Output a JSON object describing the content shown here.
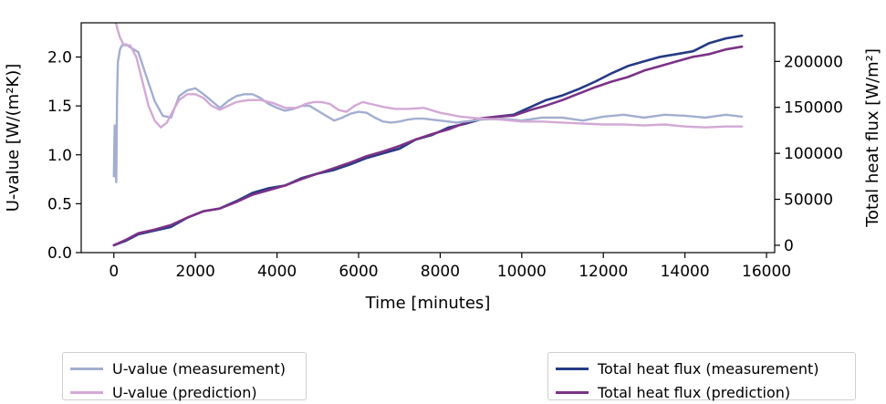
{
  "chart_data": {
    "type": "line",
    "xlabel": "Time [minutes]",
    "ylabel_left": "U-value [W/(m²K)]",
    "ylabel_right": "Total heat flux [W/m²]",
    "xlim": [
      -800,
      16200
    ],
    "ylim_left": [
      0.0,
      2.35
    ],
    "ylim_right": [
      -8000,
      242000
    ],
    "x_ticks": [
      "0",
      "2000",
      "4000",
      "6000",
      "8000",
      "10000",
      "12000",
      "14000",
      "16000"
    ],
    "y_left_ticks": [
      "0.0",
      "0.5",
      "1.0",
      "1.5",
      "2.0"
    ],
    "y_right_ticks": [
      "0",
      "50000",
      "100000",
      "150000",
      "200000"
    ],
    "legend_left": "bottom-left",
    "legend_right": "bottom-right",
    "colors": {
      "u_measurement": "#a3aed0",
      "u_prediction": "#d3a9d5",
      "flux_measurement": "#253a85",
      "flux_prediction": "#7b3287"
    },
    "series": [
      {
        "name": "U-value (measurement)",
        "axis": "left",
        "x": [
          0,
          20,
          40,
          60,
          80,
          100,
          150,
          200,
          300,
          400,
          600,
          800,
          1000,
          1200,
          1400,
          1600,
          1800,
          2000,
          2200,
          2400,
          2600,
          2800,
          3000,
          3200,
          3400,
          3600,
          3800,
          4000,
          4200,
          4400,
          4600,
          4800,
          5000,
          5200,
          5400,
          5600,
          5800,
          6000,
          6200,
          6400,
          6600,
          6800,
          7000,
          7200,
          7400,
          7600,
          7800,
          8000,
          8200,
          8400,
          8600,
          8800,
          9000,
          9500,
          10000,
          10500,
          11000,
          11500,
          12000,
          12500,
          13000,
          13500,
          14000,
          14500,
          15000,
          15400
        ],
        "y": [
          0.78,
          1.3,
          0.9,
          0.72,
          1.6,
          1.95,
          2.08,
          2.12,
          2.13,
          2.1,
          2.05,
          1.8,
          1.55,
          1.4,
          1.38,
          1.6,
          1.66,
          1.68,
          1.62,
          1.55,
          1.48,
          1.55,
          1.6,
          1.62,
          1.62,
          1.58,
          1.52,
          1.48,
          1.45,
          1.47,
          1.5,
          1.5,
          1.45,
          1.4,
          1.35,
          1.38,
          1.42,
          1.44,
          1.43,
          1.38,
          1.34,
          1.33,
          1.34,
          1.36,
          1.37,
          1.37,
          1.36,
          1.35,
          1.34,
          1.33,
          1.34,
          1.35,
          1.36,
          1.37,
          1.35,
          1.38,
          1.38,
          1.35,
          1.39,
          1.41,
          1.38,
          1.41,
          1.4,
          1.38,
          1.41,
          1.39
        ]
      },
      {
        "name": "U-value (prediction)",
        "axis": "left",
        "x": [
          0,
          80,
          150,
          250,
          400,
          550,
          700,
          850,
          1000,
          1150,
          1300,
          1450,
          1600,
          1800,
          2000,
          2200,
          2400,
          2600,
          2800,
          3000,
          3300,
          3600,
          3900,
          4200,
          4500,
          4700,
          4900,
          5100,
          5300,
          5500,
          5700,
          5900,
          6100,
          6300,
          6600,
          6900,
          7200,
          7600,
          8000,
          8500,
          9000,
          9500,
          10000,
          10500,
          11000,
          11500,
          12000,
          12500,
          13000,
          13500,
          14000,
          14500,
          15000,
          15400
        ],
        "y": [
          2.45,
          2.3,
          2.2,
          2.12,
          2.12,
          2.0,
          1.75,
          1.5,
          1.35,
          1.28,
          1.33,
          1.45,
          1.56,
          1.62,
          1.62,
          1.58,
          1.5,
          1.46,
          1.5,
          1.54,
          1.56,
          1.56,
          1.53,
          1.48,
          1.48,
          1.52,
          1.54,
          1.54,
          1.52,
          1.46,
          1.44,
          1.5,
          1.54,
          1.52,
          1.49,
          1.47,
          1.47,
          1.48,
          1.43,
          1.39,
          1.37,
          1.36,
          1.34,
          1.34,
          1.33,
          1.32,
          1.31,
          1.31,
          1.3,
          1.31,
          1.29,
          1.28,
          1.29,
          1.29
        ]
      },
      {
        "name": "Total heat flux (measurement)",
        "axis": "right",
        "x": [
          0,
          300,
          600,
          1000,
          1400,
          1800,
          2200,
          2600,
          3000,
          3400,
          3800,
          4200,
          4600,
          5000,
          5400,
          5800,
          6200,
          6600,
          7000,
          7400,
          7800,
          8200,
          8600,
          9000,
          9400,
          9800,
          10200,
          10600,
          11000,
          11400,
          11800,
          12200,
          12600,
          13000,
          13400,
          13800,
          14200,
          14600,
          15000,
          15400
        ],
        "y": [
          0,
          5000,
          12000,
          16000,
          20000,
          30000,
          37000,
          40000,
          48000,
          57000,
          62000,
          65000,
          73000,
          78000,
          82000,
          88000,
          95000,
          100000,
          105000,
          115000,
          120000,
          128000,
          132000,
          137000,
          140000,
          142000,
          150000,
          158000,
          163000,
          170000,
          178000,
          187000,
          195000,
          200000,
          205000,
          208000,
          211000,
          220000,
          225000,
          228000
        ]
      },
      {
        "name": "Total heat flux (prediction)",
        "axis": "right",
        "x": [
          0,
          300,
          600,
          1000,
          1400,
          1800,
          2200,
          2600,
          3000,
          3400,
          3800,
          4200,
          4600,
          5000,
          5400,
          5800,
          6200,
          6600,
          7000,
          7400,
          7800,
          8200,
          8600,
          9000,
          9400,
          9800,
          10200,
          10600,
          11000,
          11400,
          11800,
          12200,
          12600,
          13000,
          13400,
          13800,
          14200,
          14600,
          15000,
          15400
        ],
        "y": [
          0,
          6000,
          13000,
          17000,
          22000,
          30000,
          37000,
          40000,
          47000,
          55000,
          60000,
          65000,
          72000,
          78000,
          84000,
          90000,
          97000,
          102000,
          108000,
          115000,
          121000,
          126000,
          133000,
          138000,
          140000,
          141000,
          147000,
          152000,
          158000,
          165000,
          172000,
          178000,
          183000,
          190000,
          195000,
          200000,
          205000,
          208000,
          213000,
          216000
        ]
      }
    ]
  }
}
